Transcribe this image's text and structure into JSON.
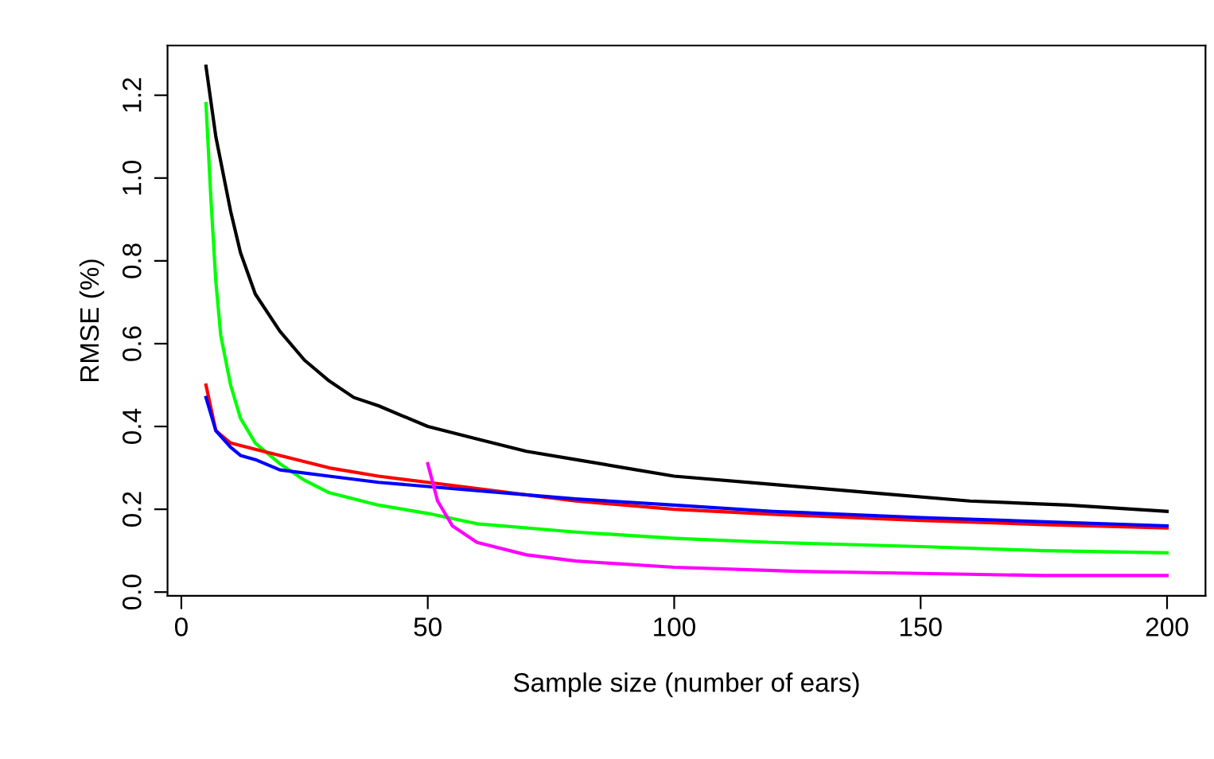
{
  "chart_data": {
    "type": "line",
    "xlabel": "Sample size (number of ears)",
    "ylabel": "RMSE (%)",
    "xlim": [
      -2.8,
      207.8
    ],
    "ylim": [
      -0.009,
      1.32
    ],
    "xticks": [
      0,
      50,
      100,
      150,
      200
    ],
    "yticks": [
      {
        "value": 0,
        "label": "0.0"
      },
      {
        "value": 0.2,
        "label": "0.2"
      },
      {
        "value": 0.4,
        "label": "0.4"
      },
      {
        "value": 0.6,
        "label": "0.6"
      },
      {
        "value": 0.8,
        "label": "0.8"
      },
      {
        "value": 1.0,
        "label": "1.0"
      },
      {
        "value": 1.2,
        "label": "1.2"
      }
    ],
    "grid": false,
    "legend": false,
    "marker": "none",
    "line_style": "solid",
    "series": [
      {
        "color": "#000000",
        "x": [
          5,
          7,
          10,
          12,
          15,
          20,
          25,
          30,
          35,
          40,
          50,
          60,
          70,
          80,
          90,
          100,
          120,
          140,
          160,
          180,
          200
        ],
        "values": [
          1.27,
          1.1,
          0.92,
          0.82,
          0.72,
          0.63,
          0.56,
          0.51,
          0.47,
          0.45,
          0.4,
          0.37,
          0.34,
          0.32,
          0.3,
          0.28,
          0.26,
          0.24,
          0.22,
          0.21,
          0.195
        ]
      },
      {
        "color": "#00ff00",
        "x": [
          5,
          6,
          7,
          8,
          10,
          12,
          15,
          20,
          25,
          30,
          40,
          50,
          60,
          70,
          80,
          100,
          120,
          150,
          175,
          200
        ],
        "values": [
          1.18,
          0.95,
          0.75,
          0.62,
          0.5,
          0.42,
          0.36,
          0.31,
          0.27,
          0.24,
          0.21,
          0.19,
          0.165,
          0.155,
          0.145,
          0.13,
          0.12,
          0.11,
          0.1,
          0.095
        ]
      },
      {
        "color": "#ff0000",
        "x": [
          5,
          7,
          10,
          15,
          20,
          30,
          40,
          50,
          60,
          80,
          100,
          120,
          150,
          175,
          200
        ],
        "values": [
          0.5,
          0.39,
          0.36,
          0.345,
          0.33,
          0.3,
          0.28,
          0.265,
          0.25,
          0.22,
          0.2,
          0.188,
          0.173,
          0.163,
          0.155
        ]
      },
      {
        "color": "#0000ff",
        "x": [
          5,
          7,
          10,
          12,
          15,
          20,
          30,
          40,
          50,
          60,
          80,
          100,
          120,
          150,
          175,
          200
        ],
        "values": [
          0.47,
          0.39,
          0.35,
          0.33,
          0.32,
          0.295,
          0.28,
          0.265,
          0.255,
          0.245,
          0.225,
          0.21,
          0.195,
          0.18,
          0.17,
          0.16
        ]
      },
      {
        "color": "#ff00ff",
        "x": [
          50,
          52,
          55,
          60,
          70,
          80,
          100,
          125,
          150,
          175,
          200
        ],
        "values": [
          0.31,
          0.22,
          0.16,
          0.12,
          0.09,
          0.075,
          0.06,
          0.05,
          0.045,
          0.04,
          0.04
        ]
      }
    ]
  }
}
